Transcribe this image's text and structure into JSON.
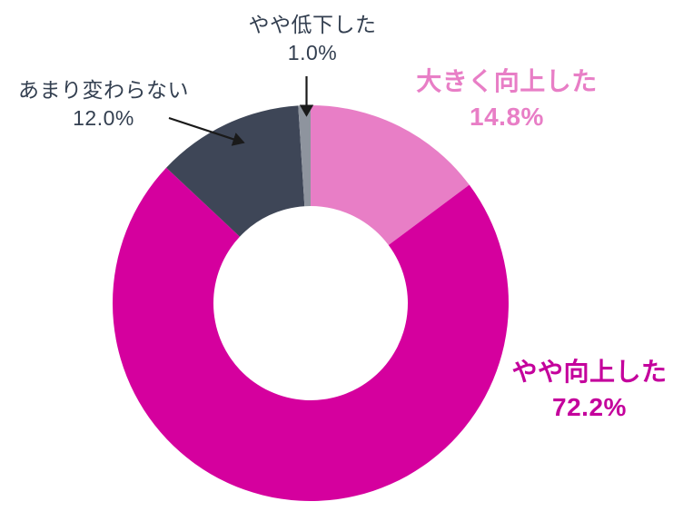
{
  "chart_data": {
    "type": "pie",
    "subtype": "donut",
    "title": "",
    "unit": "%",
    "total": 100,
    "direction": "clockwise",
    "start_angle_deg": 0,
    "legend_position": "none",
    "background_color": "#ffffff",
    "leader_line_color": "#1a1a1a",
    "segments": [
      {
        "id": "big-improvement",
        "label": "大きく向上した",
        "value": 14.8,
        "pct_label": "14.8%",
        "color": "#e87ec6",
        "label_color": "#e87ec6",
        "label_bold": true
      },
      {
        "id": "slight-improvement",
        "label": "やや向上した",
        "value": 72.2,
        "pct_label": "72.2%",
        "color": "#d5009e",
        "label_color": "#c4009c",
        "label_bold": true
      },
      {
        "id": "no-change",
        "label": "あまり変わらない",
        "value": 12.0,
        "pct_label": "12.0%",
        "color": "#3e4657",
        "label_color": "#333f50",
        "label_bold": false
      },
      {
        "id": "slight-decline",
        "label": "やや低下した",
        "value": 1.0,
        "pct_label": "1.0%",
        "color": "#8e949e",
        "label_color": "#333f50",
        "label_bold": false
      }
    ]
  }
}
